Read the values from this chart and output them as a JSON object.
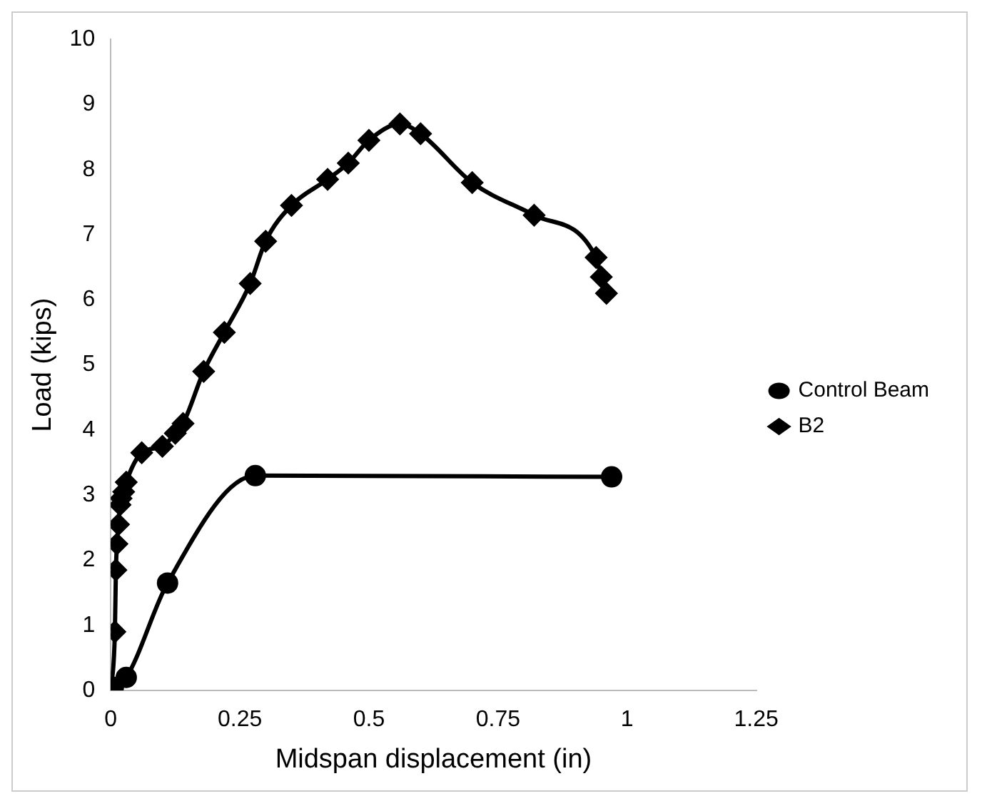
{
  "chart_data": {
    "type": "line",
    "xlabel": "Midspan displacement (in)",
    "ylabel": "Load (kips)",
    "xlim": [
      0,
      1.25
    ],
    "xticks": [
      0,
      0.25,
      0.5,
      0.75,
      1,
      1.25
    ],
    "ylim": [
      0,
      10
    ],
    "yticks": [
      0,
      1,
      2,
      3,
      4,
      5,
      6,
      7,
      8,
      9,
      10
    ],
    "grid": false,
    "legend": "right",
    "series": [
      {
        "name": "Control Beam",
        "color": "#000000",
        "marker": "circle",
        "x": [
          0,
          0.005,
          0.03,
          0.11,
          0.28,
          0.97
        ],
        "values": [
          0,
          0.05,
          0.2,
          1.65,
          3.3,
          3.28
        ]
      },
      {
        "name": "B2",
        "color": "#000000",
        "marker": "diamond",
        "x": [
          0,
          0.008,
          0.01,
          0.012,
          0.015,
          0.018,
          0.02,
          0.025,
          0.03,
          0.06,
          0.1,
          0.125,
          0.14,
          0.18,
          0.22,
          0.27,
          0.3,
          0.35,
          0.42,
          0.46,
          0.5,
          0.56,
          0.6,
          0.7,
          0.82,
          0.94,
          0.95,
          0.96
        ],
        "values": [
          0,
          0.9,
          1.85,
          2.25,
          2.55,
          2.85,
          2.95,
          3.05,
          3.2,
          3.65,
          3.75,
          3.95,
          4.1,
          4.9,
          5.5,
          6.25,
          6.9,
          7.45,
          7.85,
          8.1,
          8.45,
          8.7,
          8.55,
          7.8,
          7.3,
          6.65,
          6.35,
          6.1
        ]
      }
    ]
  }
}
